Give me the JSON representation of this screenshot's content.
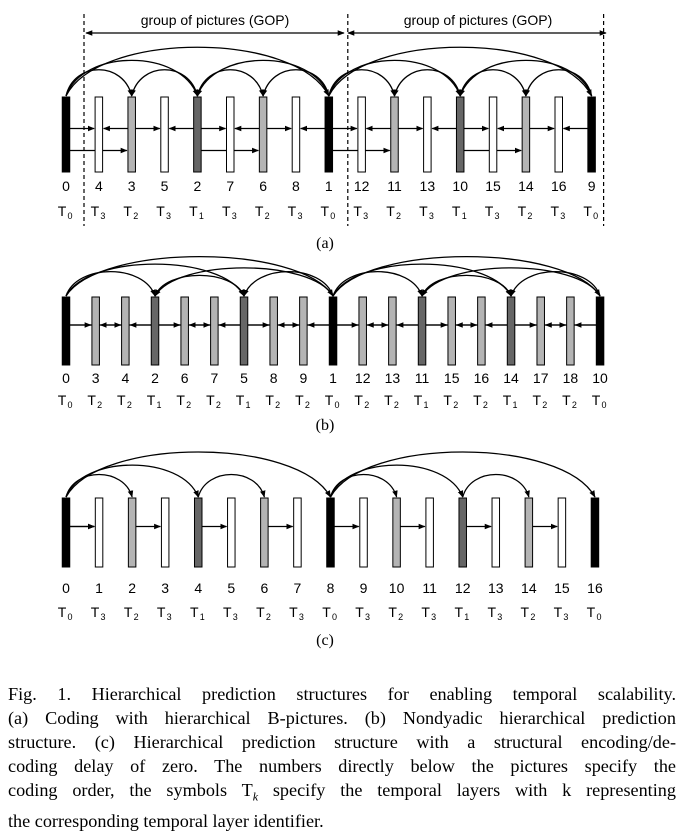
{
  "panels": [
    {
      "id": "a",
      "label": "(a)",
      "gop_label": "group of pictures (GOP)",
      "coding_order": [
        "0",
        "4",
        "3",
        "5",
        "2",
        "7",
        "6",
        "8",
        "1",
        "12",
        "11",
        "13",
        "10",
        "15",
        "14",
        "16",
        "9"
      ],
      "layers": [
        0,
        3,
        2,
        3,
        1,
        3,
        2,
        3,
        0,
        3,
        2,
        3,
        1,
        3,
        2,
        3,
        0
      ]
    },
    {
      "id": "b",
      "label": "(b)",
      "coding_order": [
        "0",
        "3",
        "4",
        "2",
        "6",
        "7",
        "5",
        "8",
        "9",
        "1",
        "12",
        "13",
        "11",
        "15",
        "16",
        "14",
        "17",
        "18",
        "10"
      ],
      "layers": [
        0,
        2,
        2,
        1,
        2,
        2,
        1,
        2,
        2,
        0,
        2,
        2,
        1,
        2,
        2,
        1,
        2,
        2,
        0
      ]
    },
    {
      "id": "c",
      "label": "(c)",
      "coding_order": [
        "0",
        "1",
        "2",
        "3",
        "4",
        "5",
        "6",
        "7",
        "8",
        "9",
        "10",
        "11",
        "12",
        "13",
        "14",
        "15",
        "16"
      ],
      "layers": [
        0,
        3,
        2,
        3,
        1,
        3,
        2,
        3,
        0,
        3,
        2,
        3,
        1,
        3,
        2,
        3,
        0
      ]
    }
  ],
  "layer_colors": {
    "0": "#000000",
    "1": "#666666",
    "2": "#b4b4b4",
    "3": "#ffffff"
  },
  "caption": {
    "lines": [
      "Fig. 1.   Hierarchical prediction structures for enabling temporal scalability.",
      "(a) Coding with hierarchical B-pictures. (b) Nondyadic hierarchical prediction",
      "structure. (c) Hierarchical prediction structure with a structural encoding/de-",
      "coding delay of zero. The numbers directly below the pictures specify the",
      "coding order, the symbols T_k specify the temporal layers with k representing",
      "the corresponding temporal layer identifier."
    ]
  }
}
